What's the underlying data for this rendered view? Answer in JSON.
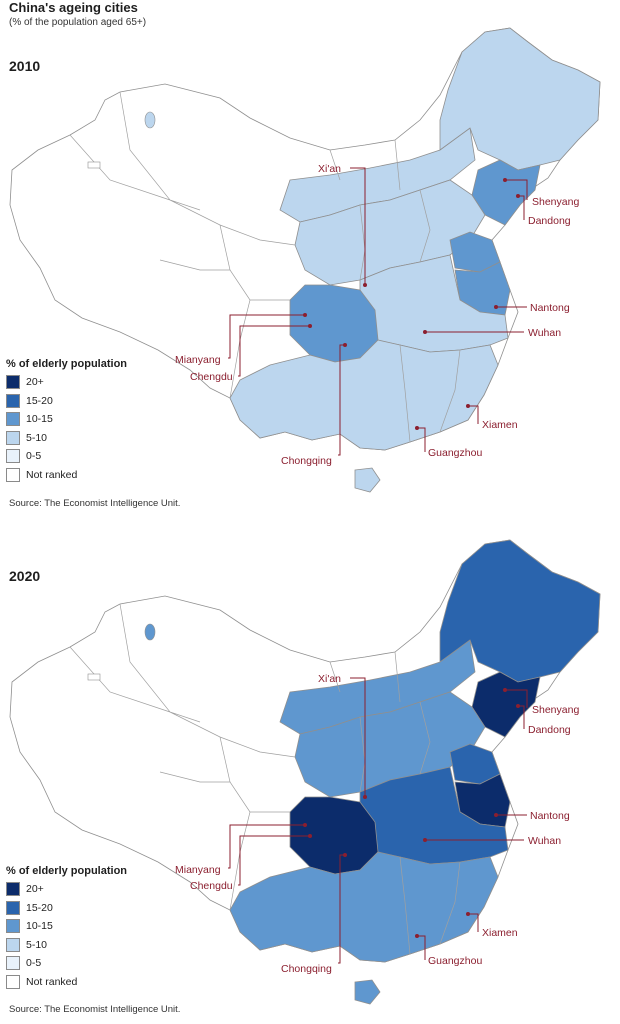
{
  "header": {
    "title": "China's ageing cities",
    "subtitle": "(% of the population aged 65+)"
  },
  "legend": {
    "title": "% of elderly population",
    "items": [
      {
        "label": "20+",
        "color": "#0c2c6b"
      },
      {
        "label": "15-20",
        "color": "#2a64ad"
      },
      {
        "label": "10-15",
        "color": "#5f97cf"
      },
      {
        "label": "5-10",
        "color": "#bcd6ee"
      },
      {
        "label": "0-5",
        "color": "#e9f2fb"
      },
      {
        "label": "Not ranked",
        "color": "#ffffff"
      }
    ]
  },
  "source": "Source: The Economist Intelligence Unit.",
  "cities": [
    "Xi'an",
    "Shenyang",
    "Dandong",
    "Nantong",
    "Wuhan",
    "Mianyang",
    "Chengdu",
    "Xiamen",
    "Chongqing",
    "Guangzhou"
  ],
  "panels": [
    {
      "year": "2010",
      "regions": {
        "northeast": "5-10",
        "liaoning": "10-15",
        "north_china": "5-10",
        "shandong": "10-15",
        "jiangsu": "10-15",
        "central": "5-10",
        "sichuan": "10-15",
        "south": "5-10",
        "inner_mongolia": "5-10",
        "west": "Not ranked"
      }
    },
    {
      "year": "2020",
      "regions": {
        "northeast": "15-20",
        "liaoning": "20+",
        "north_china": "10-15",
        "shandong": "15-20",
        "jiangsu": "20+",
        "central": "15-20",
        "sichuan": "20+",
        "south": "10-15",
        "inner_mongolia": "10-15",
        "west": "Not ranked"
      }
    }
  ]
}
